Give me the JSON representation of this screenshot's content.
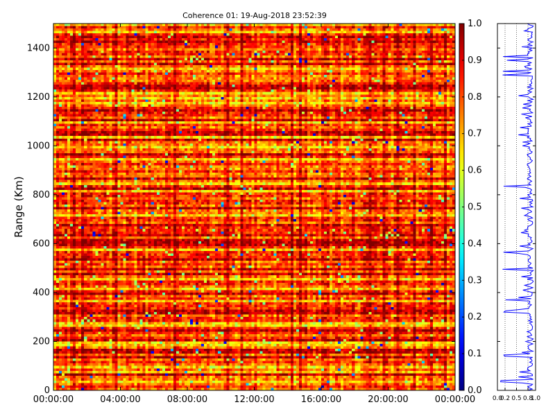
{
  "chart_data": [
    {
      "type": "heatmap",
      "title": "Coherence 01: 19-Aug-2018 23:52:39",
      "xlabel": "",
      "ylabel": "Range (Km)",
      "x_tick_labels": [
        "00:00:00",
        "04:00:00",
        "08:00:00",
        "12:00:00",
        "16:00:00",
        "20:00:00",
        "00:00:00"
      ],
      "xlim": [
        "00:00:00",
        "00:00:00"
      ],
      "y_tick_labels": [
        "0",
        "200",
        "400",
        "600",
        "800",
        "1000",
        "1200",
        "1400"
      ],
      "ylim": [
        0,
        1500
      ],
      "colorbar": {
        "colormap": "jet",
        "range": [
          0.0,
          1.0
        ],
        "tick_labels": [
          "0.0",
          "0.1",
          "0.2",
          "0.3",
          "0.4",
          "0.5",
          "0.6",
          "0.7",
          "0.8",
          "0.9",
          "1.0"
        ]
      },
      "value_summary": {
        "typical_range": [
          0.7,
          1.0
        ],
        "min_observed": 0.0
      }
    },
    {
      "type": "line",
      "title": "",
      "xlabel": "",
      "ylabel": "",
      "orientation": "vertical-profile",
      "x_tick_labels": [
        "0.0",
        "0.2",
        "0.5",
        "0.8",
        "1.0"
      ],
      "xlim": [
        0.0,
        1.0
      ],
      "ylim": [
        0,
        1500
      ],
      "line_color": "#0000ff",
      "grid": "dotted vertical lines"
    }
  ]
}
